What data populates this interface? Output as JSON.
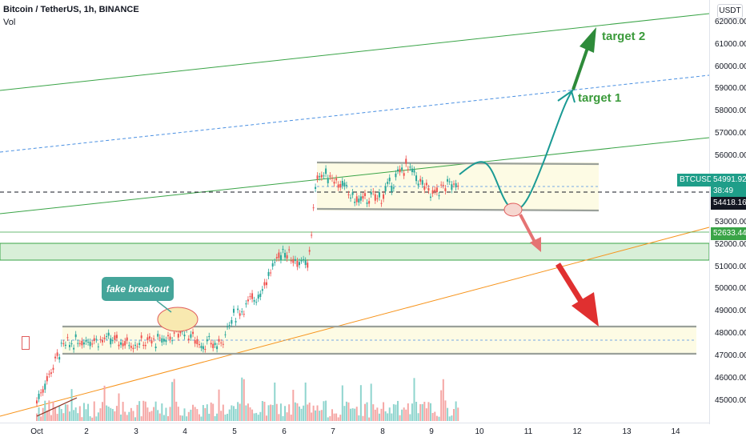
{
  "header": {
    "symbol": "Bitcoin / TetherUS, 1h, BINANCE",
    "volume_label": "Vol"
  },
  "price_axis": {
    "unit": "USDT",
    "ticks": [
      "62000.00",
      "61000.00",
      "60000.00",
      "59000.00",
      "58000.00",
      "57000.00",
      "56000.00",
      "53000.00",
      "52000.00",
      "51000.00",
      "50000.00",
      "49000.00",
      "48000.00",
      "47000.00",
      "46000.00",
      "45000.00"
    ]
  },
  "labels": {
    "symbol_tag": "BTCUSDT",
    "last_price": "54991.92",
    "countdown": "38:49",
    "dashed_level": "54418.16",
    "green_level": "52633.44"
  },
  "annotations": {
    "target1": "target 1",
    "target2": "target 2",
    "callout": "fake breakout"
  },
  "colors": {
    "up": "#26a69a",
    "down": "#ef5350",
    "green_line": "#3aa447",
    "orange_line": "#f7931a",
    "path": "#1a9a94",
    "red_arrow": "#e03030"
  },
  "chart_data": {
    "type": "candlestick",
    "symbol": "Bitcoin / TetherUS",
    "interval": "1h",
    "exchange": "BINANCE",
    "x_ticks": [
      "Oct",
      "2",
      "3",
      "4",
      "5",
      "6",
      "7",
      "8",
      "9",
      "10",
      "11",
      "12",
      "13",
      "14"
    ],
    "ylim": [
      44500,
      62700
    ],
    "last_price": 54991.92,
    "levels": [
      54418.16,
      52633.44
    ],
    "series": [
      {
        "x": "Oct",
        "price": 45000
      },
      {
        "x": "1.5",
        "price": 47400
      },
      {
        "x": "2",
        "price": 47800
      },
      {
        "x": "2.5",
        "price": 47700
      },
      {
        "x": "3",
        "price": 47600
      },
      {
        "x": "3.5",
        "price": 47700
      },
      {
        "x": "4",
        "price": 48200
      },
      {
        "x": "4.3",
        "price": 47600
      },
      {
        "x": "4.7",
        "price": 47500
      },
      {
        "x": "5",
        "price": 48800
      },
      {
        "x": "5.5",
        "price": 49800
      },
      {
        "x": "6",
        "price": 51800
      },
      {
        "x": "6.5",
        "price": 51000
      },
      {
        "x": "6.7",
        "price": 55200
      },
      {
        "x": "7",
        "price": 55100
      },
      {
        "x": "7.5",
        "price": 54000
      },
      {
        "x": "8",
        "price": 54200
      },
      {
        "x": "8.5",
        "price": 55600
      },
      {
        "x": "9",
        "price": 54300
      },
      {
        "x": "9.6",
        "price": 54990
      }
    ],
    "volume": [
      4,
      3,
      5,
      2,
      6,
      3,
      4,
      5,
      3,
      7,
      4,
      3,
      9,
      4,
      5,
      3,
      6,
      4,
      3,
      5
    ]
  }
}
